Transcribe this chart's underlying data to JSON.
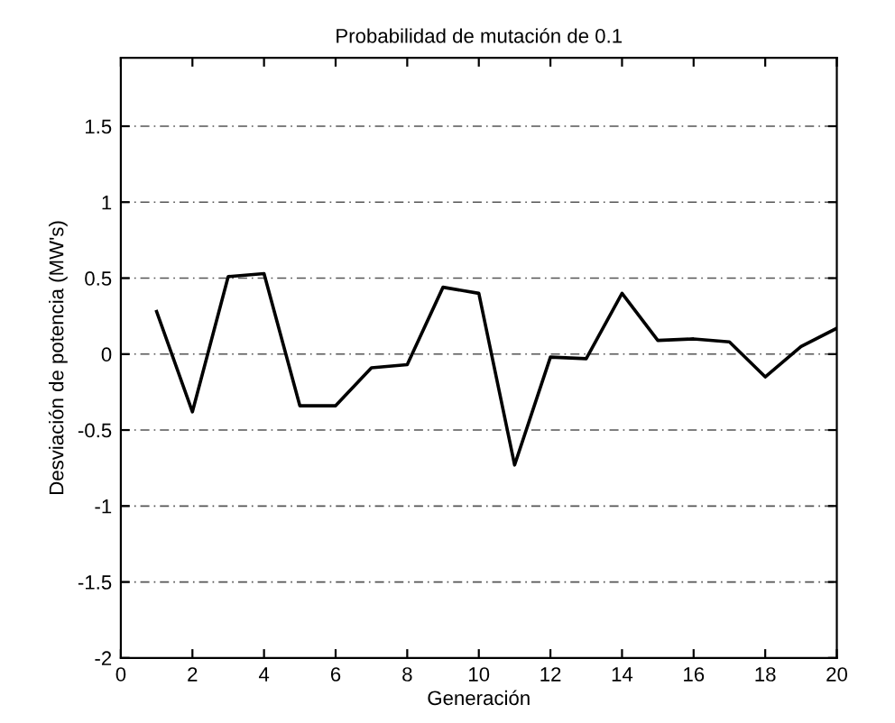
{
  "chart_data": {
    "type": "line",
    "title": "Probabilidad de mutación de 0.1",
    "xlabel": "Generación",
    "ylabel": "Desviación de potencia (MW's)",
    "x": [
      1,
      2,
      3,
      4,
      5,
      6,
      7,
      8,
      9,
      10,
      11,
      12,
      13,
      14,
      15,
      16,
      17,
      18,
      19,
      20
    ],
    "series": [
      {
        "color": "#000000",
        "values": [
          0.28,
          -0.38,
          0.51,
          0.53,
          -0.34,
          -0.34,
          -0.09,
          -0.07,
          0.44,
          0.4,
          -0.73,
          -0.02,
          -0.03,
          0.4,
          0.09,
          0.1,
          0.08,
          -0.15,
          0.05,
          0.17
        ]
      }
    ],
    "xlim": [
      0,
      20
    ],
    "xticks": [
      0,
      2,
      4,
      6,
      8,
      10,
      12,
      14,
      16,
      18,
      20
    ],
    "ylim": [
      -2,
      1.95
    ],
    "yticks": [
      -2,
      -1.5,
      -1,
      -0.5,
      0,
      0.5,
      1,
      1.5
    ],
    "grid": "y",
    "marker": "none",
    "line_style": "solid",
    "legend": false
  }
}
